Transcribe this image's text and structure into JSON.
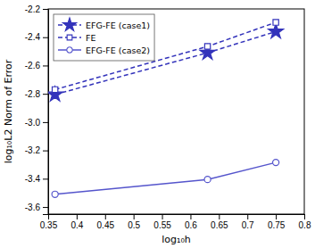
{
  "chart_data": {
    "type": "line",
    "x": [
      0.362,
      0.63,
      0.75
    ],
    "series": [
      {
        "name": "EFG-FE (case1)",
        "color": "#3333bb",
        "values": [
          -2.805,
          -2.51,
          -2.36
        ],
        "marker": "star",
        "line_style": "dashed"
      },
      {
        "name": "FE",
        "color": "#3333bb",
        "values": [
          -2.77,
          -2.465,
          -2.295
        ],
        "marker": "square",
        "line_style": "dashed"
      },
      {
        "name": "EFG-FE (case2)",
        "color": "#5555cc",
        "values": [
          -3.51,
          -3.405,
          -3.285
        ],
        "marker": "circle",
        "line_style": "solid"
      }
    ],
    "x_label": "log₁₀h",
    "y_label": "log₁₀L2 Norm of Error",
    "xlim": [
      0.35,
      0.8
    ],
    "ylim": [
      -3.65,
      -2.2
    ],
    "xticks": [
      0.35,
      0.4,
      0.45,
      0.5,
      0.55,
      0.6,
      0.65,
      0.7,
      0.75,
      0.8
    ],
    "yticks": [
      -3.6,
      -3.4,
      -3.2,
      {
        "value": -3.0,
        "label": "-3.0"
      },
      -2.8,
      -2.6,
      -2.4,
      -2.2
    ],
    "legend": "upper left",
    "grid": false
  }
}
